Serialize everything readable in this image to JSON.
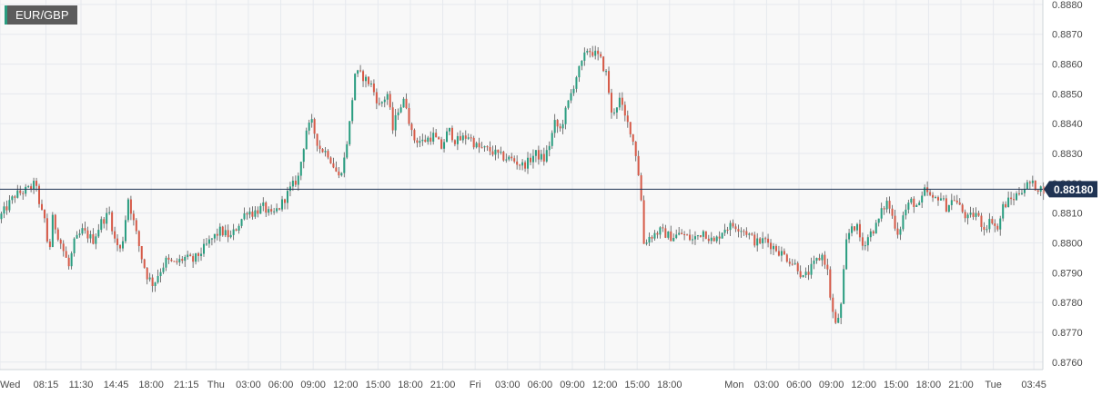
{
  "symbol": "EUR/GBP",
  "colors": {
    "up": "#2a9d80",
    "down": "#d65a48",
    "wick": "#555555",
    "price_line": "#1f3353",
    "grid": "#e6e9ee",
    "plot_bg": "#f8f8f8"
  },
  "chart_data": {
    "type": "candlestick",
    "instrument": "EUR/GBP",
    "last_price": 0.8818,
    "last_price_label": "0.88180",
    "ylim": [
      0.87575,
      0.88815
    ],
    "y_ticks": [
      "0.8760",
      "0.8770",
      "0.8780",
      "0.8790",
      "0.8800",
      "0.8810",
      "0.8820",
      "0.8830",
      "0.8840",
      "0.8850",
      "0.8860",
      "0.8870",
      "0.8880"
    ],
    "x_range": [
      "Wed 04:00",
      "Tue 04:35"
    ],
    "x_ticks": [
      {
        "label": "Wed",
        "t": "Wed 04:00"
      },
      {
        "label": "08:15",
        "t": "Wed 08:15"
      },
      {
        "label": "11:30",
        "t": "Wed 11:30"
      },
      {
        "label": "14:45",
        "t": "Wed 14:45"
      },
      {
        "label": "18:00",
        "t": "Wed 18:00"
      },
      {
        "label": "21:15",
        "t": "Wed 21:15"
      },
      {
        "label": "Thu",
        "t": "Thu 00:00"
      },
      {
        "label": "03:00",
        "t": "Thu 03:00"
      },
      {
        "label": "06:00",
        "t": "Thu 06:00"
      },
      {
        "label": "09:00",
        "t": "Thu 09:00"
      },
      {
        "label": "12:00",
        "t": "Thu 12:00"
      },
      {
        "label": "15:00",
        "t": "Thu 15:00"
      },
      {
        "label": "18:00",
        "t": "Thu 18:00"
      },
      {
        "label": "21:00",
        "t": "Thu 21:00"
      },
      {
        "label": "Fri",
        "t": "Fri 00:00"
      },
      {
        "label": "03:00",
        "t": "Fri 03:00"
      },
      {
        "label": "06:00",
        "t": "Fri 06:00"
      },
      {
        "label": "09:00",
        "t": "Fri 09:00"
      },
      {
        "label": "12:00",
        "t": "Fri 12:00"
      },
      {
        "label": "15:00",
        "t": "Fri 15:00"
      },
      {
        "label": "18:00",
        "t": "Fri 18:00"
      },
      {
        "label": "Mon",
        "t": "Mon 00:00"
      },
      {
        "label": "03:00",
        "t": "Mon 03:00"
      },
      {
        "label": "06:00",
        "t": "Mon 06:00"
      },
      {
        "label": "09:00",
        "t": "Mon 09:00"
      },
      {
        "label": "12:00",
        "t": "Mon 12:00"
      },
      {
        "label": "15:00",
        "t": "Mon 15:00"
      },
      {
        "label": "18:00",
        "t": "Mon 18:00"
      },
      {
        "label": "21:00",
        "t": "Mon 21:00"
      },
      {
        "label": "Tue",
        "t": "Tue 00:00"
      },
      {
        "label": "03:45",
        "t": "Tue 03:45"
      }
    ],
    "price_path": [
      [
        "Wed 04:00",
        0.8808
      ],
      [
        "Wed 05:30",
        0.8816
      ],
      [
        "Wed 06:45",
        0.8818
      ],
      [
        "Wed 07:30",
        0.882
      ],
      [
        "Wed 07:45",
        0.8812
      ],
      [
        "Wed 08:15",
        0.8808
      ],
      [
        "Wed 08:40",
        0.8796
      ],
      [
        "Wed 09:00",
        0.8808
      ],
      [
        "Wed 09:45",
        0.88
      ],
      [
        "Wed 10:30",
        0.8792
      ],
      [
        "Wed 11:00",
        0.88
      ],
      [
        "Wed 11:45",
        0.8804
      ],
      [
        "Wed 12:45",
        0.8801
      ],
      [
        "Wed 13:30",
        0.8807
      ],
      [
        "Wed 14:15",
        0.881
      ],
      [
        "Wed 14:45",
        0.8801
      ],
      [
        "Wed 15:20",
        0.8797
      ],
      [
        "Wed 16:00",
        0.8815
      ],
      [
        "Wed 16:45",
        0.8803
      ],
      [
        "Wed 17:15",
        0.8795
      ],
      [
        "Wed 17:45",
        0.8789
      ],
      [
        "Wed 18:20",
        0.8786
      ],
      [
        "Wed 18:50",
        0.879
      ],
      [
        "Wed 19:30",
        0.8794
      ],
      [
        "Wed 20:15",
        0.8793
      ],
      [
        "Wed 21:15",
        0.8795
      ],
      [
        "Wed 22:00",
        0.8794
      ],
      [
        "Wed 22:45",
        0.8797
      ],
      [
        "Wed 23:40",
        0.8801
      ],
      [
        "Thu 00:30",
        0.8804
      ],
      [
        "Thu 01:30",
        0.8802
      ],
      [
        "Thu 02:30",
        0.8808
      ],
      [
        "Thu 03:00",
        0.8811
      ],
      [
        "Thu 03:30",
        0.881
      ],
      [
        "Thu 04:30",
        0.8812
      ],
      [
        "Thu 05:15",
        0.8809
      ],
      [
        "Thu 06:00",
        0.8812
      ],
      [
        "Thu 07:00",
        0.8818
      ],
      [
        "Thu 07:45",
        0.8822
      ],
      [
        "Thu 08:30",
        0.8838
      ],
      [
        "Thu 09:00",
        0.884
      ],
      [
        "Thu 09:40",
        0.8832
      ],
      [
        "Thu 10:30",
        0.883
      ],
      [
        "Thu 11:00",
        0.8826
      ],
      [
        "Thu 11:30",
        0.8822
      ],
      [
        "Thu 12:00",
        0.8828
      ],
      [
        "Thu 12:30",
        0.884
      ],
      [
        "Thu 13:00",
        0.8857
      ],
      [
        "Thu 13:40",
        0.8856
      ],
      [
        "Thu 14:30",
        0.8853
      ],
      [
        "Thu 15:15",
        0.8846
      ],
      [
        "Thu 16:00",
        0.885
      ],
      [
        "Thu 16:30",
        0.8838
      ],
      [
        "Thu 17:00",
        0.8845
      ],
      [
        "Thu 17:40",
        0.8848
      ],
      [
        "Thu 18:20",
        0.8835
      ],
      [
        "Thu 19:15",
        0.8834
      ],
      [
        "Thu 20:15",
        0.8836
      ],
      [
        "Thu 21:00",
        0.8832
      ],
      [
        "Thu 21:40",
        0.8838
      ],
      [
        "Thu 22:20",
        0.8834
      ],
      [
        "Thu 23:30",
        0.8836
      ],
      [
        "Fri 00:20",
        0.8832
      ],
      [
        "Fri 01:30",
        0.8831
      ],
      [
        "Fri 02:30",
        0.8829
      ],
      [
        "Fri 03:30",
        0.8828
      ],
      [
        "Fri 04:30",
        0.8826
      ],
      [
        "Fri 05:00",
        0.8827
      ],
      [
        "Fri 05:40",
        0.883
      ],
      [
        "Fri 06:30",
        0.8828
      ],
      [
        "Fri 07:00",
        0.8833
      ],
      [
        "Fri 07:30",
        0.884
      ],
      [
        "Fri 08:00",
        0.8838
      ],
      [
        "Fri 08:30",
        0.8844
      ],
      [
        "Fri 09:00",
        0.885
      ],
      [
        "Fri 09:30",
        0.8856
      ],
      [
        "Fri 10:00",
        0.886
      ],
      [
        "Fri 10:30",
        0.8865
      ],
      [
        "Fri 11:00",
        0.8864
      ],
      [
        "Fri 11:40",
        0.8862
      ],
      [
        "Fri 12:20",
        0.8856
      ],
      [
        "Fri 12:45",
        0.8843
      ],
      [
        "Fri 13:30",
        0.8848
      ],
      [
        "Fri 14:00",
        0.8842
      ],
      [
        "Fri 14:30",
        0.8838
      ],
      [
        "Fri 15:00",
        0.883
      ],
      [
        "Fri 15:25",
        0.8819
      ],
      [
        "Fri 15:45",
        0.88
      ],
      [
        "Fri 16:15",
        0.8802
      ],
      [
        "Fri 17:15",
        0.8804
      ],
      [
        "Fri 18:15",
        0.8802
      ],
      [
        "Fri 19:15",
        0.8803
      ],
      [
        "Fri 20:15",
        0.8801
      ],
      [
        "Fri 21:15",
        0.8804
      ],
      [
        "Fri 22:15",
        0.88
      ],
      [
        "Fri 23:10",
        0.8805
      ],
      [
        "Mon 00:10",
        0.8806
      ],
      [
        "Mon 01:10",
        0.8804
      ],
      [
        "Mon 02:10",
        0.88
      ],
      [
        "Mon 03:00",
        0.8801
      ],
      [
        "Mon 04:00",
        0.8798
      ],
      [
        "Mon 05:00",
        0.8795
      ],
      [
        "Mon 06:00",
        0.8792
      ],
      [
        "Mon 06:30",
        0.8788
      ],
      [
        "Mon 07:00",
        0.879
      ],
      [
        "Mon 07:45",
        0.8794
      ],
      [
        "Mon 08:20",
        0.8796
      ],
      [
        "Mon 08:45",
        0.8791
      ],
      [
        "Mon 09:05",
        0.878
      ],
      [
        "Mon 09:30",
        0.8772
      ],
      [
        "Mon 10:00",
        0.8778
      ],
      [
        "Mon 10:30",
        0.88
      ],
      [
        "Mon 11:00",
        0.8806
      ],
      [
        "Mon 11:30",
        0.8805
      ],
      [
        "Mon 12:00",
        0.8799
      ],
      [
        "Mon 12:40",
        0.8803
      ],
      [
        "Mon 13:20",
        0.8806
      ],
      [
        "Mon 13:50",
        0.8811
      ],
      [
        "Mon 14:20",
        0.8814
      ],
      [
        "Mon 14:50",
        0.8808
      ],
      [
        "Mon 15:20",
        0.8803
      ],
      [
        "Mon 15:50",
        0.881
      ],
      [
        "Mon 16:30",
        0.8814
      ],
      [
        "Mon 17:15",
        0.8812
      ],
      [
        "Mon 17:50",
        0.8818
      ],
      [
        "Mon 18:30",
        0.8814
      ],
      [
        "Mon 19:10",
        0.8816
      ],
      [
        "Mon 19:45",
        0.8812
      ],
      [
        "Mon 20:30",
        0.8815
      ],
      [
        "Mon 21:10",
        0.8811
      ],
      [
        "Mon 21:45",
        0.8808
      ],
      [
        "Mon 22:30",
        0.881
      ],
      [
        "Mon 23:15",
        0.8805
      ],
      [
        "Tue 00:00",
        0.8808
      ],
      [
        "Tue 00:30",
        0.8804
      ],
      [
        "Tue 01:00",
        0.8812
      ],
      [
        "Tue 01:30",
        0.8814
      ],
      [
        "Tue 02:00",
        0.8815
      ],
      [
        "Tue 02:45",
        0.8818
      ],
      [
        "Tue 03:30",
        0.882
      ],
      [
        "Tue 04:00",
        0.8819
      ],
      [
        "Tue 04:35",
        0.8818
      ]
    ],
    "grid": true
  }
}
